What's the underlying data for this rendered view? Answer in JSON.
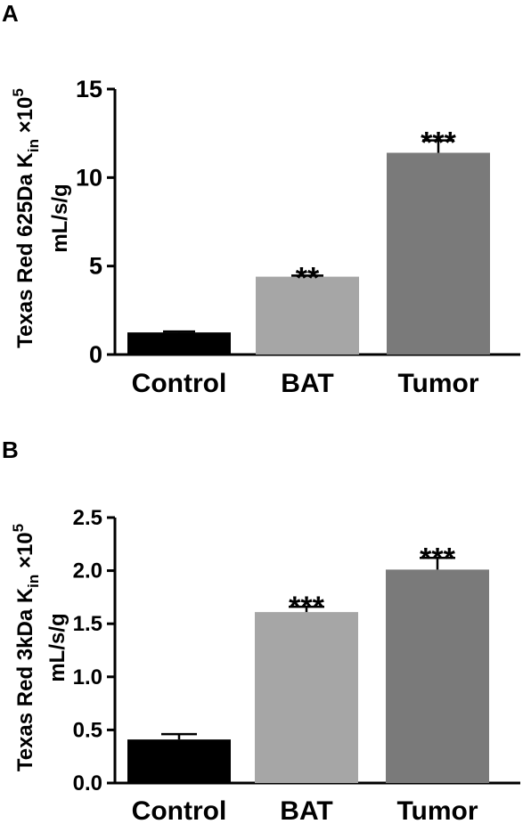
{
  "chart_data": [
    {
      "panel": "A",
      "type": "bar",
      "categories": [
        "Control",
        "BAT",
        "Tumor"
      ],
      "values": [
        1.25,
        4.4,
        11.4
      ],
      "errors": [
        0.05,
        0.06,
        0.7
      ],
      "significance": [
        "",
        "**",
        "***"
      ],
      "colors": [
        "#000000",
        "#a6a6a6",
        "#7a7a7a"
      ],
      "ylabel_line1": "Texas Red 625Da K",
      "ylabel_sub": "in",
      "ylabel_mult": " ×10",
      "ylabel_sup": "5",
      "ylabel_line2": "mL/s/g",
      "ylim": [
        0,
        15
      ],
      "yticks": [
        0,
        5,
        10,
        15
      ],
      "yticklabels": [
        "0",
        "5",
        "10",
        "15"
      ]
    },
    {
      "panel": "B",
      "type": "bar",
      "categories": [
        "Control",
        "BAT",
        "Tumor"
      ],
      "values": [
        0.41,
        1.61,
        2.01
      ],
      "errors": [
        0.05,
        0.05,
        0.11
      ],
      "significance": [
        "",
        "***",
        "***"
      ],
      "colors": [
        "#000000",
        "#a6a6a6",
        "#7a7a7a"
      ],
      "ylabel_line1": "Texas Red 3kDa K",
      "ylabel_sub": "in",
      "ylabel_mult": " ×10",
      "ylabel_sup": "5",
      "ylabel_line2": "mL/s/g",
      "ylim": [
        0,
        2.5
      ],
      "yticks": [
        0,
        0.5,
        1.0,
        1.5,
        2.0,
        2.5
      ],
      "yticklabels": [
        "0.0",
        "0.5",
        "1.0",
        "1.5",
        "2.0",
        "2.5"
      ]
    }
  ]
}
